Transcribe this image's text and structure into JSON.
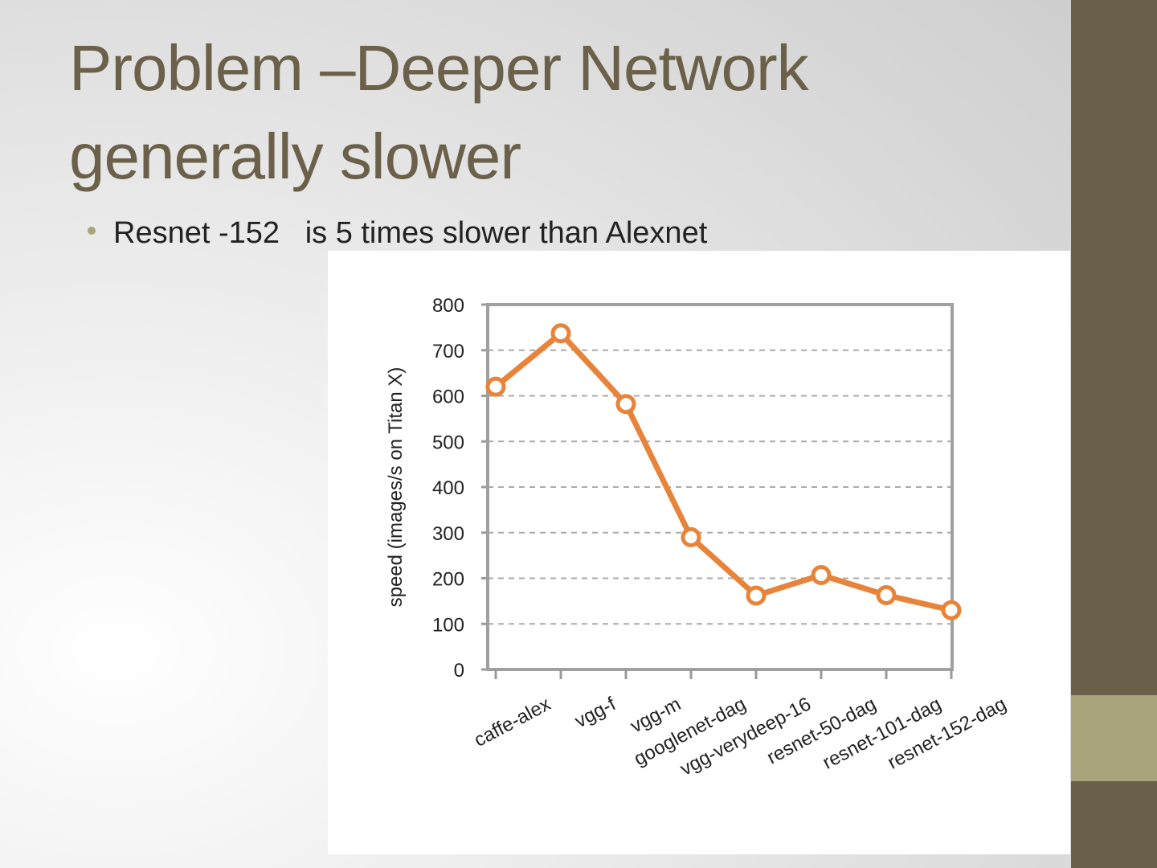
{
  "slide": {
    "title_lines": [
      "Problem –Deeper Network",
      "generally slower"
    ],
    "bullet": "Resnet -152   is 5 times slower than Alexnet"
  },
  "chart_data": {
    "type": "line",
    "y_label": "speed (images/s on Titan X)",
    "categories": [
      "caffe-alex",
      "vgg-f",
      "vgg-m",
      "googlenet-dag",
      "vgg-verydeep-16",
      "resnet-50-dag",
      "resnet-101-dag",
      "resnet-152-dag"
    ],
    "values": [
      620,
      737,
      582,
      290,
      162,
      207,
      163,
      130
    ],
    "color": "#e8833a",
    "ylim": [
      0,
      800
    ],
    "yticks": [
      0,
      100,
      200,
      300,
      400,
      500,
      600,
      700,
      800
    ],
    "grid": true
  }
}
